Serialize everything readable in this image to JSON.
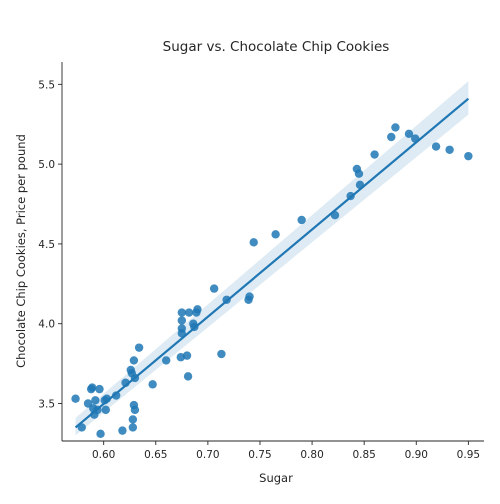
{
  "chart_data": {
    "type": "scatter",
    "title": "Sugar vs. Chocolate Chip Cookies",
    "xlabel": "Sugar",
    "ylabel": "Chocolate Chip Cookies, Price per pound",
    "xlim": [
      0.56,
      0.965
    ],
    "ylim": [
      3.265,
      5.64
    ],
    "x_ticks": [
      0.6,
      0.65,
      0.7,
      0.75,
      0.8,
      0.85,
      0.9,
      0.95
    ],
    "x_tick_labels": [
      "0.60",
      "0.65",
      "0.70",
      "0.75",
      "0.80",
      "0.85",
      "0.90",
      "0.95"
    ],
    "y_ticks": [
      3.5,
      4.0,
      4.5,
      5.0,
      5.5
    ],
    "y_tick_labels": [
      "3.5",
      "4.0",
      "4.5",
      "5.0",
      "5.5"
    ],
    "grid": false,
    "color": "#1f77b4",
    "regression": {
      "x": [
        0.573,
        0.95
      ],
      "y": [
        3.35,
        5.41
      ],
      "ci_lower": [
        3.3,
        5.31
      ],
      "ci_upper": [
        3.41,
        5.52
      ]
    },
    "series": [
      {
        "points": [
          [
            0.573,
            3.53
          ],
          [
            0.579,
            3.35
          ],
          [
            0.585,
            3.5
          ],
          [
            0.588,
            3.59
          ],
          [
            0.589,
            3.6
          ],
          [
            0.59,
            3.47
          ],
          [
            0.591,
            3.43
          ],
          [
            0.592,
            3.52
          ],
          [
            0.594,
            3.46
          ],
          [
            0.596,
            3.59
          ],
          [
            0.597,
            3.31
          ],
          [
            0.601,
            3.52
          ],
          [
            0.602,
            3.46
          ],
          [
            0.603,
            3.53
          ],
          [
            0.612,
            3.55
          ],
          [
            0.618,
            3.33
          ],
          [
            0.621,
            3.63
          ],
          [
            0.626,
            3.71
          ],
          [
            0.627,
            3.69
          ],
          [
            0.628,
            3.35
          ],
          [
            0.628,
            3.4
          ],
          [
            0.629,
            3.49
          ],
          [
            0.629,
            3.77
          ],
          [
            0.63,
            3.46
          ],
          [
            0.63,
            3.66
          ],
          [
            0.634,
            3.85
          ],
          [
            0.647,
            3.62
          ],
          [
            0.66,
            3.77
          ],
          [
            0.674,
            3.79
          ],
          [
            0.675,
            3.94
          ],
          [
            0.675,
            3.97
          ],
          [
            0.675,
            4.02
          ],
          [
            0.675,
            4.07
          ],
          [
            0.68,
            3.8
          ],
          [
            0.681,
            3.67
          ],
          [
            0.682,
            4.07
          ],
          [
            0.686,
            4.0
          ],
          [
            0.687,
            3.98
          ],
          [
            0.689,
            4.07
          ],
          [
            0.69,
            4.09
          ],
          [
            0.706,
            4.22
          ],
          [
            0.713,
            3.81
          ],
          [
            0.718,
            4.15
          ],
          [
            0.739,
            4.15
          ],
          [
            0.74,
            4.17
          ],
          [
            0.744,
            4.51
          ],
          [
            0.765,
            4.56
          ],
          [
            0.79,
            4.65
          ],
          [
            0.822,
            4.68
          ],
          [
            0.837,
            4.8
          ],
          [
            0.843,
            4.97
          ],
          [
            0.845,
            4.94
          ],
          [
            0.846,
            4.87
          ],
          [
            0.86,
            5.06
          ],
          [
            0.876,
            5.17
          ],
          [
            0.88,
            5.23
          ],
          [
            0.893,
            5.19
          ],
          [
            0.899,
            5.16
          ],
          [
            0.919,
            5.11
          ],
          [
            0.932,
            5.09
          ],
          [
            0.95,
            5.05
          ]
        ]
      }
    ]
  }
}
